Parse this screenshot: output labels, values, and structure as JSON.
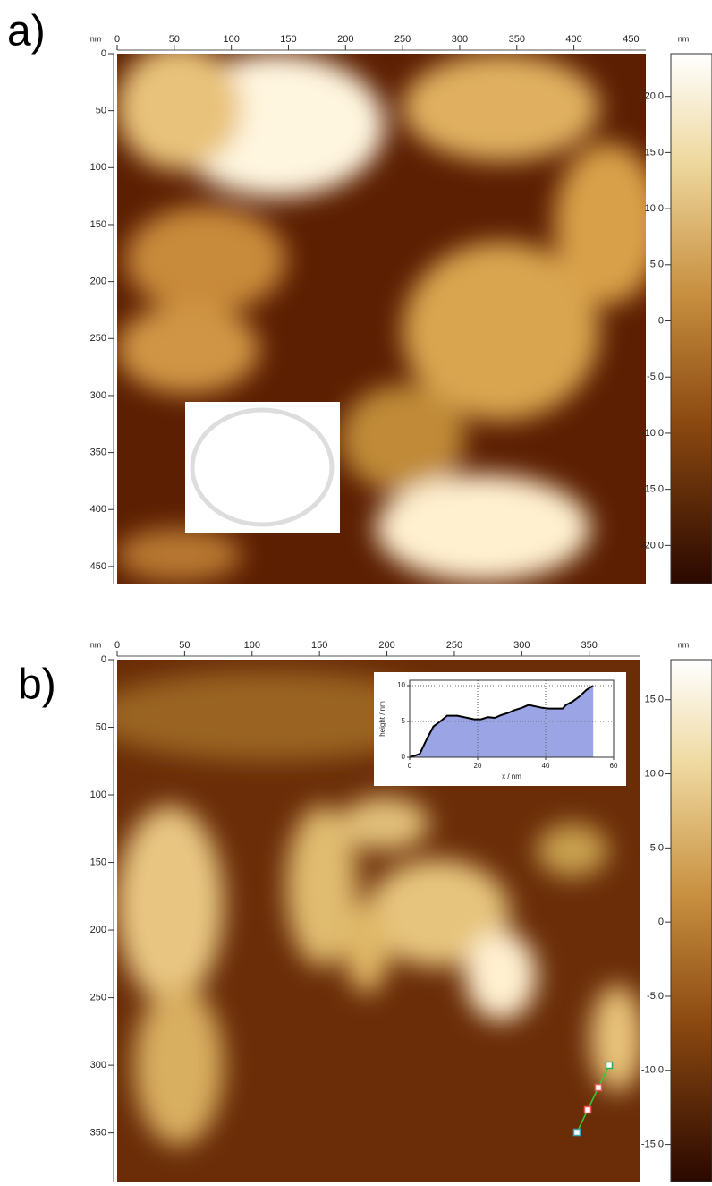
{
  "chart_data": [
    {
      "type": "image",
      "label": "a)",
      "axis_unit": "nm",
      "xlim": [
        0,
        463
      ],
      "ylim": [
        0,
        465
      ],
      "xticks": [
        0,
        50,
        100,
        150,
        200,
        250,
        300,
        350,
        400,
        450
      ],
      "yticks": [
        0,
        50,
        100,
        150,
        200,
        250,
        300,
        350,
        400,
        450
      ],
      "colorbar_unit": "nm",
      "colorbar_lim": [
        -23.4,
        23.8
      ],
      "colorbar_ticks": [
        {
          "value": 20,
          "label": "20.0"
        },
        {
          "value": 15,
          "label": "15.0"
        },
        {
          "value": 10,
          "label": "10.0"
        },
        {
          "value": 5,
          "label": "5.0"
        },
        0,
        {
          "value": -5,
          "label": "-5.0"
        },
        {
          "value": -10,
          "label": "-10.0"
        },
        {
          "value": -15,
          "label": "-15.0"
        },
        {
          "value": -20,
          "label": "-20.0"
        }
      ]
    },
    {
      "type": "image",
      "label": "b)",
      "axis_unit": "nm",
      "xlim": [
        0,
        388
      ],
      "ylim": [
        0,
        386
      ],
      "xticks": [
        0,
        50,
        100,
        150,
        200,
        250,
        300,
        350
      ],
      "yticks": [
        0,
        50,
        100,
        150,
        200,
        250,
        300,
        350
      ],
      "colorbar_unit": "nm",
      "colorbar_lim": [
        -17.5,
        17.7
      ],
      "colorbar_ticks": [
        {
          "value": 15,
          "label": "15.0"
        },
        {
          "value": 10,
          "label": "10.0"
        },
        {
          "value": 5,
          "label": "5.0"
        },
        0,
        {
          "value": -5,
          "label": "-5.0"
        },
        {
          "value": -10,
          "label": "-10.0"
        },
        {
          "value": -15,
          "label": "-15.0"
        }
      ]
    },
    {
      "type": "area",
      "xlabel": "x / nm",
      "ylabel": "height / nm",
      "xlim": [
        0,
        60
      ],
      "ylim": [
        0,
        10.75
      ],
      "xticks": [
        0,
        20,
        40,
        60
      ],
      "yticks": [
        0,
        5,
        10
      ],
      "grid": true,
      "color": "#9ba5e6",
      "line_color": "#000000",
      "x": [
        0,
        2,
        3,
        5,
        7,
        9,
        11,
        14,
        17,
        19,
        21,
        23,
        25,
        27,
        29,
        31,
        33,
        35,
        37,
        39,
        41,
        43,
        45,
        46,
        48,
        50,
        52,
        54
      ],
      "values": [
        0,
        0.3,
        0.5,
        2.5,
        4.3,
        5,
        5.8,
        5.8,
        5.5,
        5.3,
        5.3,
        5.6,
        5.5,
        5.9,
        6.2,
        6.6,
        6.9,
        7.3,
        7.1,
        6.9,
        6.8,
        6.8,
        6.8,
        7.3,
        7.8,
        8.5,
        9.4,
        10
      ]
    }
  ]
}
